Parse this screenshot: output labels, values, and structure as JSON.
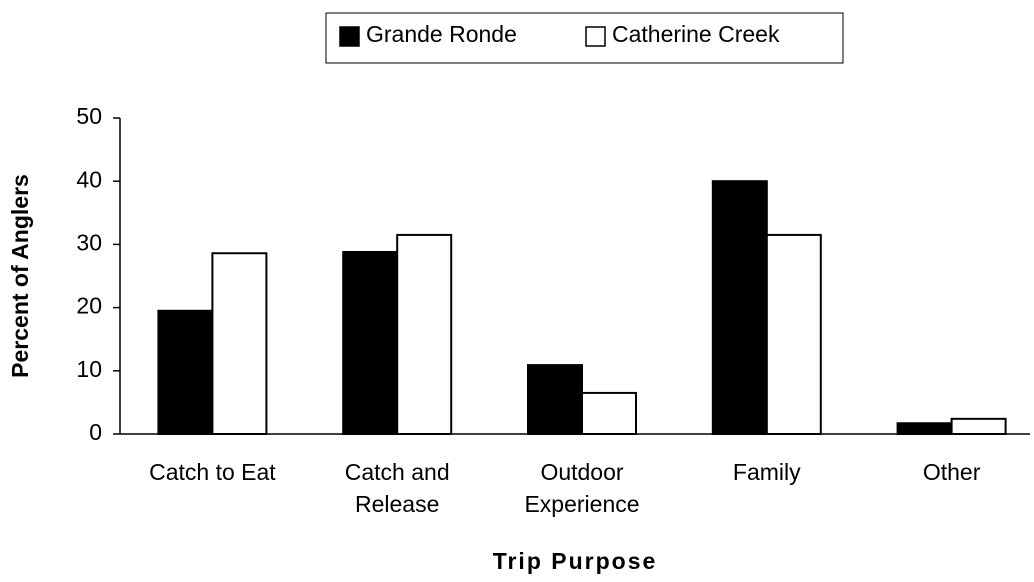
{
  "chart_data": {
    "type": "bar",
    "categories": [
      [
        "Catch to Eat"
      ],
      [
        "Catch and",
        "Release"
      ],
      [
        "Outdoor",
        "Experience"
      ],
      [
        "Family"
      ],
      [
        "Other"
      ]
    ],
    "series": [
      {
        "name": "Grande Ronde",
        "color": "#000000",
        "values": [
          19.5,
          28.8,
          10.9,
          40.0,
          1.7
        ]
      },
      {
        "name": "Catherine Creek",
        "color": "#ffffff",
        "values": [
          28.6,
          31.5,
          6.5,
          31.5,
          2.4
        ]
      }
    ],
    "ylim": [
      0,
      50
    ],
    "yticks": [
      0,
      10,
      20,
      30,
      40,
      50
    ],
    "ylabel": "Percent of Anglers",
    "xlabel": "Trip Purpose",
    "legend": "top",
    "grid": false
  }
}
